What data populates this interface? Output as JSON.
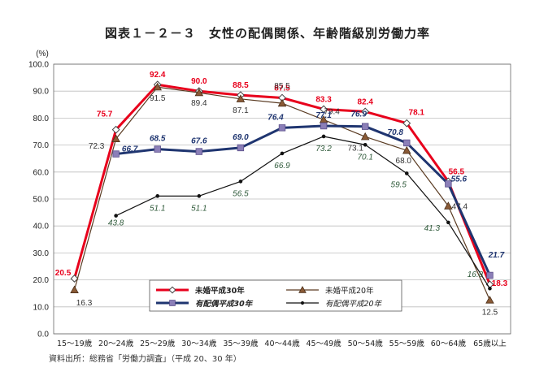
{
  "title": "図表１－２－３　女性の配偶関係、年齢階級別労働力率",
  "source": "資料出所：総務省「労働力調査」（平成 20、30 年）",
  "chart_data": {
    "type": "line",
    "ylabel": "(%)",
    "ylim": [
      0,
      100
    ],
    "yticks": [
      "0.0",
      "10.0",
      "20.0",
      "30.0",
      "40.0",
      "50.0",
      "60.0",
      "70.0",
      "80.0",
      "90.0",
      "100.0"
    ],
    "grid": true,
    "legend_position": "bottom-center",
    "categories": [
      "15～19歳",
      "20～24歳",
      "25～29歳",
      "30～34歳",
      "35～39歳",
      "40～44歳",
      "45～49歳",
      "50～54歳",
      "55～59歳",
      "60～64歳",
      "65歳以上"
    ],
    "series": [
      {
        "name": "未婚平成30年",
        "color": "#e8001c",
        "marker": "diamond",
        "label_color": "#e8001c",
        "values": [
          20.5,
          75.7,
          92.4,
          90.0,
          88.5,
          87.5,
          83.3,
          82.4,
          78.1,
          56.5,
          18.3
        ]
      },
      {
        "name": "未婚平成20年",
        "color": "#5a3b22",
        "marker": "triangle",
        "label_color": "#333333",
        "values": [
          16.3,
          72.3,
          91.5,
          89.4,
          87.1,
          85.5,
          79.4,
          73.1,
          68.0,
          47.4,
          12.5
        ]
      },
      {
        "name": "有配偶平成30年",
        "color": "#1f3570",
        "marker": "square",
        "label_color": "#1f3570",
        "values": [
          null,
          66.7,
          68.5,
          67.6,
          69.0,
          76.4,
          77.1,
          76.9,
          70.8,
          55.6,
          21.7
        ]
      },
      {
        "name": "有配偶平成20年",
        "color": "#111111",
        "marker": "dot",
        "label_color": "#2f5a3a",
        "values": [
          null,
          43.8,
          51.1,
          51.1,
          56.5,
          66.9,
          73.2,
          70.1,
          59.5,
          41.3,
          16.8
        ]
      }
    ]
  }
}
